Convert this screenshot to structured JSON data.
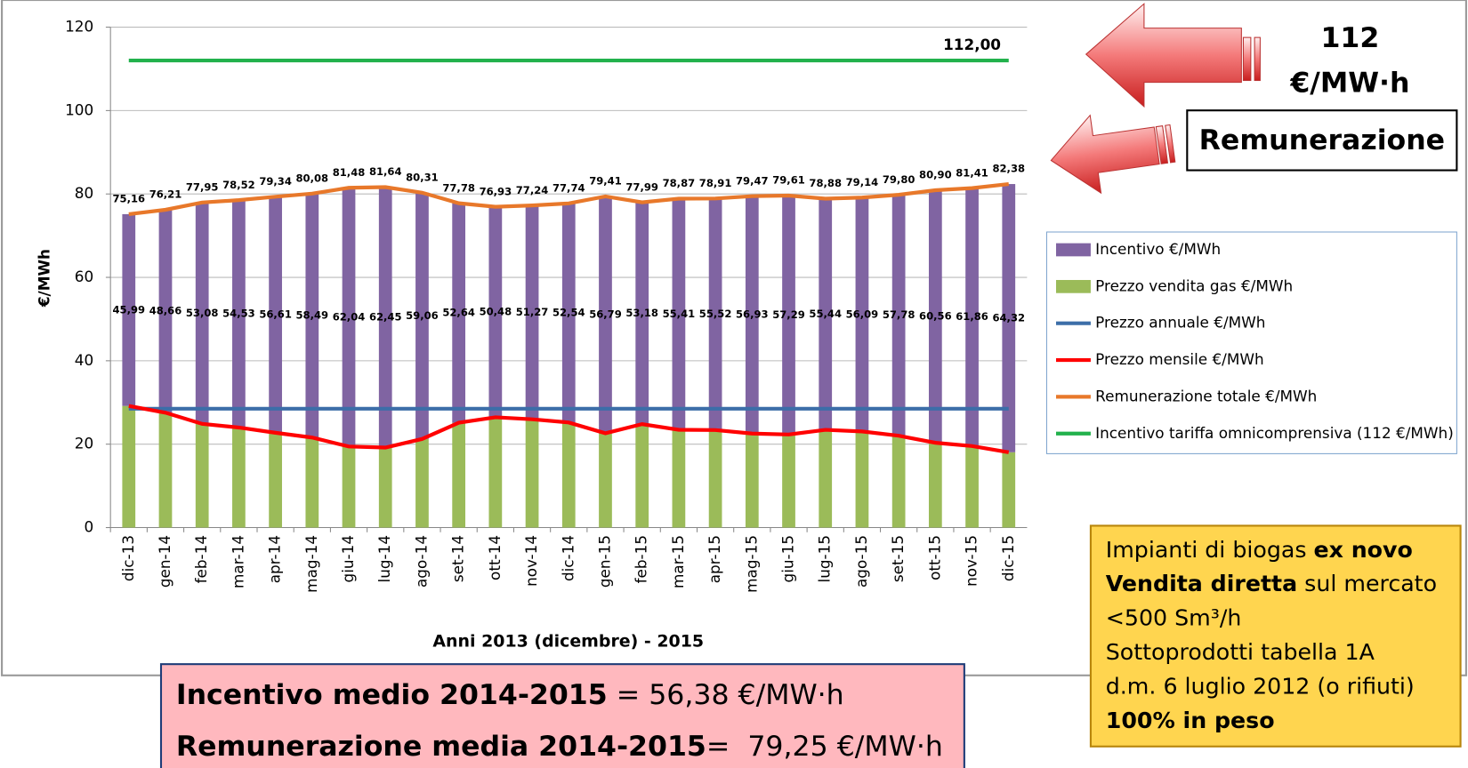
{
  "chart_data": {
    "type": "bar",
    "y_label": "€/MWh",
    "x_label": "Anni 2013 (dicembre) - 2015",
    "categories": [
      "dic-13",
      "gen-14",
      "feb-14",
      "mar-14",
      "apr-14",
      "mag-14",
      "giu-14",
      "lug-14",
      "ago-14",
      "set-14",
      "ott-14",
      "nov-14",
      "dic-14",
      "gen-15",
      "feb-15",
      "mar-15",
      "apr-15",
      "mag-15",
      "giu-15",
      "lug-15",
      "ago-15",
      "set-15",
      "ott-15",
      "nov-15",
      "dic-15"
    ],
    "ylim": [
      0,
      120
    ],
    "yticks": [
      0,
      20,
      40,
      60,
      80,
      100,
      120
    ],
    "grid": true,
    "series": [
      {
        "name": "Incentivo €/MWh",
        "type": "bar",
        "color": "#8064a2",
        "values": [
          45.99,
          48.66,
          53.08,
          54.53,
          56.61,
          58.49,
          62.04,
          62.45,
          59.06,
          52.64,
          50.48,
          51.27,
          52.54,
          56.79,
          53.18,
          55.41,
          55.52,
          56.93,
          57.29,
          55.44,
          56.09,
          57.78,
          60.56,
          61.86,
          64.32
        ],
        "value_labels": [
          "45,99",
          "48,66",
          "53,08",
          "54,53",
          "56,61",
          "58,49",
          "62,04",
          "62,45",
          "59,06",
          "52,64",
          "50,48",
          "51,27",
          "52,54",
          "56,79",
          "53,18",
          "55,41",
          "55,52",
          "56,93",
          "57,29",
          "55,44",
          "56,09",
          "57,78",
          "60,56",
          "61,86",
          "64,32"
        ]
      },
      {
        "name": "Prezzo vendita gas €/MWh",
        "type": "bar",
        "color": "#9bbb59",
        "values": [
          29.17,
          27.55,
          24.87,
          23.99,
          22.73,
          21.59,
          19.44,
          19.19,
          21.25,
          25.14,
          26.45,
          25.97,
          25.2,
          22.62,
          24.81,
          23.46,
          23.39,
          22.54,
          22.32,
          23.44,
          23.05,
          22.02,
          20.34,
          19.55,
          18.06
        ]
      },
      {
        "name": "Prezzo annuale €/MWh",
        "type": "line",
        "color": "#3c6ea8",
        "values": [
          28.5,
          28.5,
          28.5,
          28.5,
          28.5,
          28.5,
          28.5,
          28.5,
          28.5,
          28.5,
          28.5,
          28.5,
          28.5,
          28.5,
          28.5,
          28.5,
          28.5,
          28.5,
          28.5,
          28.5,
          28.5,
          28.5,
          28.5,
          28.5,
          28.5
        ]
      },
      {
        "name": "Prezzo mensile €/MWh",
        "type": "line",
        "color": "#ff0000",
        "values": [
          29.17,
          27.55,
          24.87,
          23.99,
          22.73,
          21.59,
          19.44,
          19.19,
          21.25,
          25.14,
          26.45,
          25.97,
          25.2,
          22.62,
          24.81,
          23.46,
          23.39,
          22.54,
          22.32,
          23.44,
          23.05,
          22.02,
          20.34,
          19.55,
          18.06
        ]
      },
      {
        "name": "Remunerazione totale €/MWh",
        "type": "line",
        "color": "#e8782a",
        "values": [
          75.16,
          76.21,
          77.95,
          78.52,
          79.34,
          80.08,
          81.48,
          81.64,
          80.31,
          77.78,
          76.93,
          77.24,
          77.74,
          79.41,
          77.99,
          78.87,
          78.91,
          79.47,
          79.61,
          78.88,
          79.14,
          79.8,
          80.9,
          81.41,
          82.38
        ],
        "value_labels": [
          "75,16",
          "76,21",
          "77,95",
          "78,52",
          "79,34",
          "80,08",
          "81,48",
          "81,64",
          "80,31",
          "77,78",
          "76,93",
          "77,24",
          "77,74",
          "79,41",
          "77,99",
          "78,87",
          "78,91",
          "79,47",
          "79,61",
          "78,88",
          "79,14",
          "79,80",
          "80,90",
          "81,41",
          "82,38"
        ]
      },
      {
        "name": "Incentivo tariffa omnicomprensiva (112 €/MWh)",
        "type": "line",
        "color": "#22b14c",
        "values": [
          112,
          112,
          112,
          112,
          112,
          112,
          112,
          112,
          112,
          112,
          112,
          112,
          112,
          112,
          112,
          112,
          112,
          112,
          112,
          112,
          112,
          112,
          112,
          112,
          112
        ],
        "value_labels": [
          null,
          null,
          null,
          null,
          null,
          null,
          null,
          null,
          null,
          null,
          null,
          null,
          null,
          null,
          null,
          null,
          null,
          null,
          null,
          null,
          null,
          null,
          null,
          "112,00",
          null
        ]
      }
    ]
  },
  "arrow_labels": {
    "tariff": [
      "112",
      "€/MW·h"
    ],
    "remuneration": "Remunerazione"
  },
  "summary_box": {
    "lines": [
      [
        {
          "text": "Incentivo medio 2014-2015",
          "bold": true
        },
        {
          "text": " = 56,38 €/MW·h",
          "bold": false
        }
      ],
      [
        {
          "text": "Remunerazione media 2014-2015",
          "bold": true
        },
        {
          "text": "=  79,25 €/MW·h",
          "bold": false
        }
      ]
    ]
  },
  "info_box": {
    "lines": [
      [
        {
          "text": "Impianti di biogas ",
          "bold": false
        },
        {
          "text": "ex novo",
          "bold": true
        }
      ],
      [
        {
          "text": "Vendita diretta",
          "bold": true
        },
        {
          "text": " sul mercato",
          "bold": false
        }
      ],
      [
        {
          "text": "<500 Sm³/h",
          "bold": false
        }
      ],
      [
        {
          "text": "Sottoprodotti tabella 1A",
          "bold": false
        }
      ],
      [
        {
          "text": "d.m. 6 luglio 2012 (o rifiuti)",
          "bold": false
        }
      ],
      [
        {
          "text": "100% in peso",
          "bold": true
        }
      ]
    ]
  }
}
